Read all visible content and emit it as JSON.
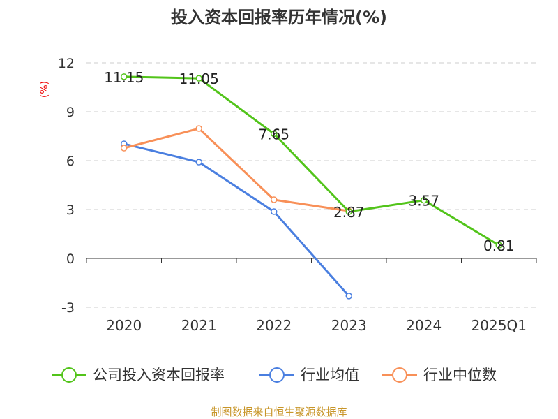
{
  "chart_data": {
    "type": "line",
    "title": "投入资本回报率历年情况(%)",
    "ylabel": "(%)",
    "xlabel": "",
    "categories": [
      "2020",
      "2021",
      "2022",
      "2023",
      "2024",
      "2025Q1"
    ],
    "ylim": [
      -3,
      12
    ],
    "yticks": [
      -3,
      0,
      3,
      6,
      9,
      12
    ],
    "ytick_labels": [
      "-3",
      "0",
      "3",
      "6",
      "9",
      "12"
    ],
    "grid": true,
    "legend_position": "bottom",
    "series": [
      {
        "name": "公司投入资本回报率",
        "color": "#52c41a",
        "values": [
          11.15,
          11.05,
          7.65,
          2.87,
          3.57,
          0.81
        ],
        "labels": [
          "11.15",
          "11.05",
          "7.65",
          "2.87",
          "3.57",
          "0.81"
        ]
      },
      {
        "name": "行业均值",
        "color": "#4a7fe0",
        "values": [
          7.03,
          5.91,
          2.87,
          -2.31,
          null,
          null
        ]
      },
      {
        "name": "行业中位数",
        "color": "#f89058",
        "values": [
          6.77,
          7.97,
          3.6,
          2.91,
          null,
          null
        ]
      }
    ]
  },
  "source": "制图数据来自恒生聚源数据库"
}
